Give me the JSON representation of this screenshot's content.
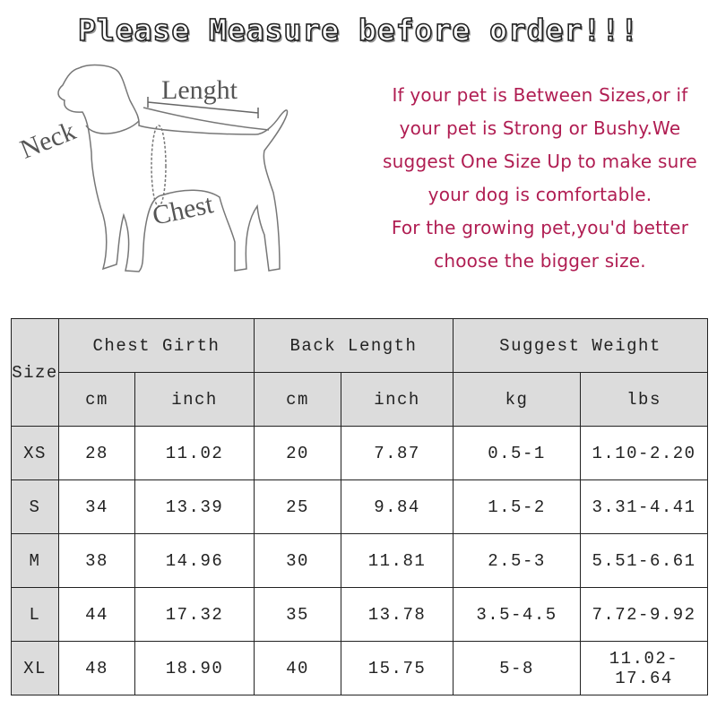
{
  "title": "Please Measure before order!!!",
  "diagram": {
    "labels": {
      "neck": "Neck",
      "length": "Lenght",
      "chest": "Chest"
    }
  },
  "tips": [
    "If your pet is Between Sizes,or if",
    "your pet is Strong or Bushy.We",
    "suggest One Size Up to make sure",
    "your dog is comfortable.",
    "For the growing pet,you'd better",
    "choose the bigger size."
  ],
  "colors": {
    "tip_text": "#b01d52",
    "header_bg": "#dcdcdc"
  },
  "table": {
    "size_header": "Size",
    "groups": [
      "Chest Girth",
      "Back Length",
      "Suggest Weight"
    ],
    "units": [
      "cm",
      "inch",
      "cm",
      "inch",
      "kg",
      "lbs"
    ],
    "rows": [
      {
        "size": "XS",
        "cells": [
          "28",
          "11.02",
          "20",
          "7.87",
          "0.5-1",
          "1.10-2.20"
        ]
      },
      {
        "size": "S",
        "cells": [
          "34",
          "13.39",
          "25",
          "9.84",
          "1.5-2",
          "3.31-4.41"
        ]
      },
      {
        "size": "M",
        "cells": [
          "38",
          "14.96",
          "30",
          "11.81",
          "2.5-3",
          "5.51-6.61"
        ]
      },
      {
        "size": "L",
        "cells": [
          "44",
          "17.32",
          "35",
          "13.78",
          "3.5-4.5",
          "7.72-9.92"
        ]
      },
      {
        "size": "XL",
        "cells": [
          "48",
          "18.90",
          "40",
          "15.75",
          "5-8",
          "11.02-17.64"
        ]
      }
    ]
  }
}
